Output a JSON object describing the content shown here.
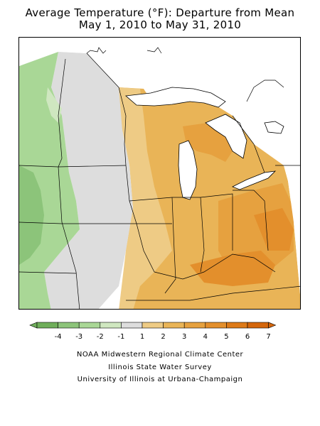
{
  "title_line1": "Average Temperature (°F): Departure from Mean",
  "title_line2": "May 1, 2010 to May 31, 2010",
  "legend": {
    "colors": [
      "#6fae5a",
      "#8cc47a",
      "#a9d796",
      "#cfe7c0",
      "#dddddd",
      "#eecb85",
      "#e9b457",
      "#e6a13f",
      "#e38f2c",
      "#dd7a18",
      "#d4660b"
    ],
    "labels": [
      "-4",
      "-3",
      "-2",
      "-1",
      "1",
      "2",
      "3",
      "4",
      "5",
      "6",
      "7"
    ]
  },
  "credits": [
    "NOAA Midwestern Regional Climate Center",
    "Illinois State Water Survey",
    "University of Illinois at Urbana-Champaign"
  ]
}
